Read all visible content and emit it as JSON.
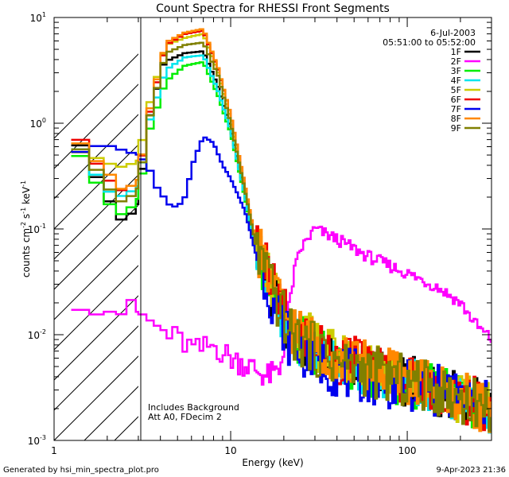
{
  "chart_data": {
    "type": "line",
    "title": "Count Spectra for RHESSI Front Segments",
    "xlabel": "Energy (keV)",
    "ylabel": {
      "base": "counts cm",
      "exp1": "-2",
      "mid1": " s",
      "exp2": "-1",
      "mid2": " keV",
      "exp3": "-1"
    },
    "xscale": "log",
    "yscale": "log",
    "xlim": [
      1,
      300
    ],
    "ylim": [
      0.001,
      10
    ],
    "x_ticks": [
      {
        "v": 1,
        "label": "1"
      },
      {
        "v": 10,
        "label": "10"
      },
      {
        "v": 100,
        "label": "100"
      }
    ],
    "y_ticks": [
      {
        "v": 10,
        "base": "10",
        "exp": "1"
      },
      {
        "v": 1,
        "base": "10",
        "exp": "0"
      },
      {
        "v": 0.1,
        "base": "10",
        "exp": "-1"
      },
      {
        "v": 0.01,
        "base": "10",
        "exp": "-2"
      },
      {
        "v": 0.001,
        "base": "10",
        "exp": "-3"
      }
    ],
    "date": "6-Jul-2003",
    "time_range": "05:51:00 to 05:52:00",
    "hatched_region_xmax": 3,
    "annotations": [
      "Includes Background",
      "Att A0, FDecim 2"
    ],
    "footer_left": "Generated by hsi_min_spectra_plot.pro",
    "footer_right": "9-Apr-2023 21:36",
    "legend_position": "top-right",
    "series": [
      {
        "name": "1F",
        "color": "#000000",
        "ctrl": [
          [
            1.3,
            0.8
          ],
          [
            1.6,
            0.4
          ],
          [
            2.0,
            0.2
          ],
          [
            2.5,
            0.11
          ],
          [
            3.0,
            0.18
          ],
          [
            3.4,
            1.0
          ],
          [
            4.2,
            3.8
          ],
          [
            5.5,
            4.6
          ],
          [
            7.0,
            4.8
          ],
          [
            8.5,
            2.2
          ],
          [
            10,
            0.9
          ],
          [
            12,
            0.22
          ],
          [
            14,
            0.06
          ],
          [
            17,
            0.025
          ],
          [
            18,
            0.02
          ],
          [
            22,
            0.009
          ],
          [
            40,
            0.0055
          ],
          [
            80,
            0.004
          ],
          [
            150,
            0.003
          ],
          [
            300,
            0.002
          ]
        ]
      },
      {
        "name": "2F",
        "color": "#ff00ff",
        "ctrl": [
          [
            1.2,
            0.024
          ],
          [
            1.5,
            0.022
          ],
          [
            2.0,
            0.018
          ],
          [
            2.5,
            0.017
          ],
          [
            3.0,
            0.016
          ],
          [
            4.0,
            0.011
          ],
          [
            5.0,
            0.009
          ],
          [
            6.5,
            0.007
          ],
          [
            8.0,
            0.008
          ],
          [
            10,
            0.006
          ],
          [
            13,
            0.005
          ],
          [
            16,
            0.004
          ],
          [
            19,
            0.0045
          ],
          [
            21,
            0.015
          ],
          [
            23,
            0.04
          ],
          [
            25,
            0.065
          ],
          [
            30,
            0.1
          ],
          [
            40,
            0.08
          ],
          [
            60,
            0.055
          ],
          [
            100,
            0.038
          ],
          [
            150,
            0.028
          ],
          [
            200,
            0.02
          ],
          [
            250,
            0.012
          ],
          [
            300,
            0.009
          ]
        ]
      },
      {
        "name": "3F",
        "color": "#00ee00",
        "ctrl": [
          [
            1.3,
            0.6
          ],
          [
            1.6,
            0.35
          ],
          [
            2.0,
            0.18
          ],
          [
            2.5,
            0.13
          ],
          [
            3.0,
            0.2
          ],
          [
            3.5,
            0.9
          ],
          [
            4.3,
            2.5
          ],
          [
            5.5,
            3.5
          ],
          [
            7.0,
            3.8
          ],
          [
            8.5,
            1.8
          ],
          [
            10,
            0.8
          ],
          [
            12,
            0.2
          ],
          [
            14,
            0.06
          ],
          [
            18,
            0.022
          ],
          [
            22,
            0.01
          ],
          [
            40,
            0.0055
          ],
          [
            80,
            0.004
          ],
          [
            150,
            0.003
          ],
          [
            300,
            0.002
          ]
        ]
      },
      {
        "name": "4F",
        "color": "#00e5ee",
        "ctrl": [
          [
            1.3,
            0.7
          ],
          [
            1.6,
            0.4
          ],
          [
            2.0,
            0.23
          ],
          [
            2.5,
            0.2
          ],
          [
            3.0,
            0.26
          ],
          [
            3.5,
            1.1
          ],
          [
            4.3,
            3.2
          ],
          [
            5.5,
            4.2
          ],
          [
            7.0,
            4.4
          ],
          [
            8.5,
            2.0
          ],
          [
            10,
            0.85
          ],
          [
            12,
            0.21
          ],
          [
            14,
            0.06
          ],
          [
            18,
            0.022
          ],
          [
            22,
            0.01
          ],
          [
            40,
            0.0055
          ],
          [
            80,
            0.004
          ],
          [
            150,
            0.003
          ],
          [
            300,
            0.002
          ]
        ]
      },
      {
        "name": "5F",
        "color": "#cccc00",
        "ctrl": [
          [
            1.3,
            0.55
          ],
          [
            1.6,
            0.5
          ],
          [
            2.0,
            0.42
          ],
          [
            2.5,
            0.38
          ],
          [
            3.0,
            0.45
          ],
          [
            3.5,
            1.6
          ],
          [
            4.3,
            5.5
          ],
          [
            5.5,
            6.4
          ],
          [
            7.0,
            7.0
          ],
          [
            8.5,
            3.0
          ],
          [
            10,
            1.1
          ],
          [
            12,
            0.25
          ],
          [
            14,
            0.07
          ],
          [
            18,
            0.025
          ],
          [
            22,
            0.012
          ],
          [
            40,
            0.006
          ],
          [
            80,
            0.0045
          ],
          [
            150,
            0.003
          ],
          [
            300,
            0.002
          ]
        ]
      },
      {
        "name": "6F",
        "color": "#ee0000",
        "ctrl": [
          [
            1.3,
            0.85
          ],
          [
            1.6,
            0.5
          ],
          [
            2.0,
            0.3
          ],
          [
            2.5,
            0.22
          ],
          [
            3.0,
            0.3
          ],
          [
            3.5,
            1.3
          ],
          [
            4.3,
            5.5
          ],
          [
            5.5,
            7.0
          ],
          [
            7.0,
            7.5
          ],
          [
            8.5,
            3.2
          ],
          [
            10,
            1.2
          ],
          [
            12,
            0.27
          ],
          [
            14,
            0.07
          ],
          [
            18,
            0.025
          ],
          [
            22,
            0.012
          ],
          [
            40,
            0.006
          ],
          [
            80,
            0.0045
          ],
          [
            150,
            0.003
          ],
          [
            300,
            0.002
          ]
        ]
      },
      {
        "name": "7F",
        "color": "#0000ee",
        "ctrl": [
          [
            1.3,
            0.5
          ],
          [
            1.6,
            0.6
          ],
          [
            2.0,
            0.62
          ],
          [
            2.5,
            0.55
          ],
          [
            3.0,
            0.5
          ],
          [
            3.4,
            0.4
          ],
          [
            3.8,
            0.25
          ],
          [
            4.5,
            0.17
          ],
          [
            5.0,
            0.16
          ],
          [
            5.5,
            0.2
          ],
          [
            6.2,
            0.45
          ],
          [
            7.0,
            0.75
          ],
          [
            8.0,
            0.65
          ],
          [
            9.0,
            0.4
          ],
          [
            10,
            0.3
          ],
          [
            12,
            0.15
          ],
          [
            14,
            0.055
          ],
          [
            18,
            0.018
          ],
          [
            22,
            0.008
          ],
          [
            40,
            0.0045
          ],
          [
            80,
            0.0035
          ],
          [
            150,
            0.003
          ],
          [
            300,
            0.002
          ]
        ]
      },
      {
        "name": "8F",
        "color": "#ff8800",
        "ctrl": [
          [
            1.3,
            0.75
          ],
          [
            1.6,
            0.5
          ],
          [
            2.0,
            0.35
          ],
          [
            2.5,
            0.22
          ],
          [
            3.0,
            0.3
          ],
          [
            3.5,
            1.4
          ],
          [
            4.3,
            5.8
          ],
          [
            5.5,
            7.2
          ],
          [
            7.0,
            7.8
          ],
          [
            8.5,
            3.3
          ],
          [
            10,
            1.2
          ],
          [
            12,
            0.27
          ],
          [
            14,
            0.07
          ],
          [
            18,
            0.025
          ],
          [
            22,
            0.012
          ],
          [
            40,
            0.006
          ],
          [
            80,
            0.0045
          ],
          [
            150,
            0.003
          ],
          [
            300,
            0.002
          ]
        ]
      },
      {
        "name": "9F",
        "color": "#808000",
        "ctrl": [
          [
            1.3,
            0.65
          ],
          [
            1.6,
            0.45
          ],
          [
            2.0,
            0.25
          ],
          [
            2.5,
            0.17
          ],
          [
            3.0,
            0.25
          ],
          [
            3.5,
            1.2
          ],
          [
            4.3,
            4.6
          ],
          [
            5.5,
            5.5
          ],
          [
            7.0,
            5.8
          ],
          [
            8.5,
            2.8
          ],
          [
            10,
            1.0
          ],
          [
            12,
            0.24
          ],
          [
            14,
            0.065
          ],
          [
            18,
            0.022
          ],
          [
            22,
            0.01
          ],
          [
            40,
            0.0055
          ],
          [
            80,
            0.004
          ],
          [
            150,
            0.003
          ],
          [
            300,
            0.002
          ]
        ]
      }
    ]
  }
}
